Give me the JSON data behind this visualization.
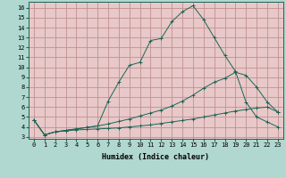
{
  "xlabel": "Humidex (Indice chaleur)",
  "fig_background": "#b0d8d0",
  "plot_background": "#e8c8c8",
  "grid_color": "#c09090",
  "line_color": "#1a6655",
  "xlim": [
    -0.5,
    23.5
  ],
  "ylim": [
    2.8,
    16.6
  ],
  "xticks": [
    0,
    1,
    2,
    3,
    4,
    5,
    6,
    7,
    8,
    9,
    10,
    11,
    12,
    13,
    14,
    15,
    16,
    17,
    18,
    19,
    20,
    21,
    22,
    23
  ],
  "yticks": [
    3,
    4,
    5,
    6,
    7,
    8,
    9,
    10,
    11,
    12,
    13,
    14,
    15,
    16
  ],
  "line1_x": [
    0,
    1,
    2,
    3,
    4,
    5,
    6,
    7,
    8,
    9,
    10,
    11,
    12,
    13,
    14,
    15,
    16,
    17,
    18,
    19,
    20,
    21,
    22,
    23
  ],
  "line1_y": [
    4.7,
    3.2,
    3.5,
    3.6,
    3.7,
    3.75,
    3.8,
    3.85,
    3.9,
    4.0,
    4.1,
    4.2,
    4.35,
    4.5,
    4.65,
    4.8,
    5.0,
    5.2,
    5.4,
    5.6,
    5.75,
    5.9,
    6.0,
    5.5
  ],
  "line2_x": [
    0,
    1,
    2,
    3,
    4,
    5,
    6,
    7,
    8,
    9,
    10,
    11,
    12,
    13,
    14,
    15,
    16,
    17,
    18,
    19,
    20,
    21,
    22,
    23
  ],
  "line2_y": [
    4.7,
    3.2,
    3.5,
    3.65,
    3.8,
    3.95,
    4.1,
    4.3,
    4.55,
    4.8,
    5.1,
    5.4,
    5.7,
    6.1,
    6.6,
    7.2,
    7.9,
    8.5,
    8.9,
    9.5,
    9.2,
    8.0,
    6.5,
    5.5
  ],
  "line3_x": [
    0,
    1,
    2,
    3,
    4,
    5,
    6,
    7,
    8,
    9,
    10,
    11,
    12,
    13,
    14,
    15,
    16,
    17,
    18,
    19,
    20,
    21,
    22,
    23
  ],
  "line3_y": [
    4.7,
    3.2,
    3.5,
    3.65,
    3.8,
    3.95,
    4.1,
    6.6,
    8.5,
    10.2,
    10.5,
    12.7,
    12.9,
    14.6,
    15.6,
    16.2,
    14.8,
    13.0,
    11.2,
    9.6,
    6.5,
    5.0,
    4.5,
    4.0
  ],
  "xlabel_fontsize": 6.0,
  "tick_fontsize": 5.0
}
